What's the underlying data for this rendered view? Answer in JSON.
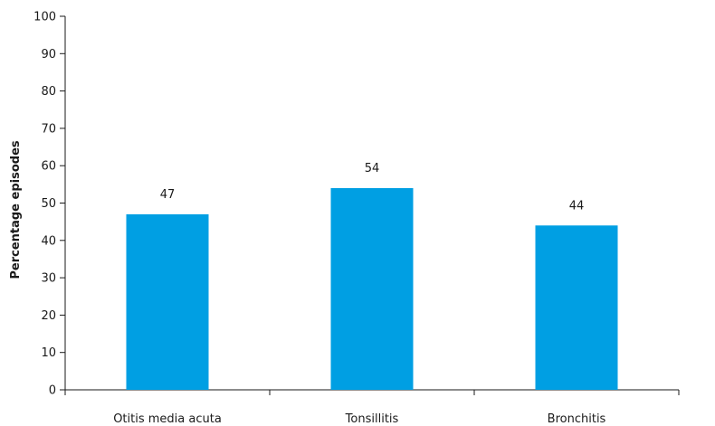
{
  "chart_data": {
    "type": "bar",
    "categories": [
      "Otitis media acuta",
      "Tonsillitis",
      "Bronchitis"
    ],
    "values": [
      47,
      54,
      44
    ],
    "data_labels": [
      "47",
      "54",
      "44"
    ],
    "ylabel": "Percentage episodes",
    "xlabel": "",
    "ylim": [
      0,
      100
    ],
    "yticks": [
      "0",
      "10",
      "20",
      "30",
      "40",
      "50",
      "60",
      "70",
      "80",
      "90",
      "100"
    ],
    "bar_color": "#009fe3",
    "grid": false,
    "legend": "none"
  }
}
